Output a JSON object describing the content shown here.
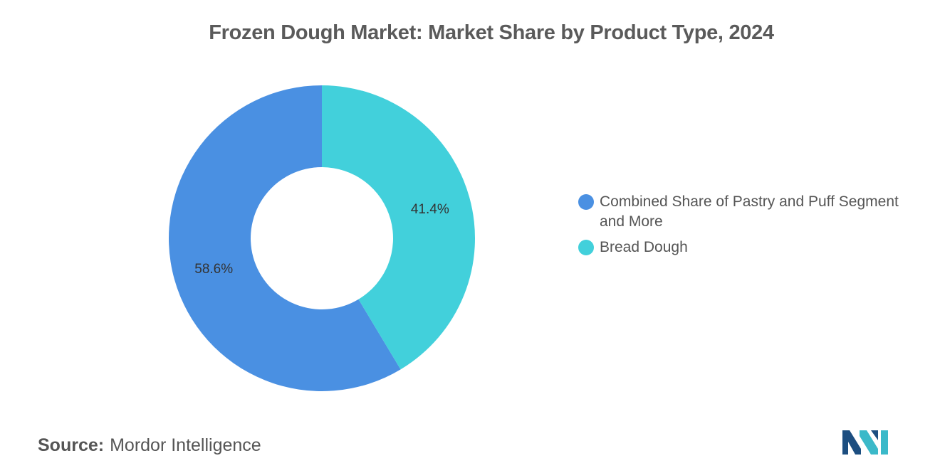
{
  "chart_data": {
    "type": "pie",
    "donut": true,
    "title": "Frozen Dough Market: Market Share by Product Type, 2024",
    "categories": [
      "Combined Share of Pastry and Puff Segment and More",
      "Bread Dough"
    ],
    "values": [
      58.6,
      41.4
    ],
    "value_labels": [
      "58.6%",
      "41.4%"
    ],
    "colors": [
      "#4a90e2",
      "#42d0db"
    ],
    "legend_placement": "right",
    "start_angle_deg": 0,
    "direction": "counterclockwise"
  },
  "source": {
    "label": "Source:",
    "value": "Mordor Intelligence"
  },
  "logo": {
    "icon": "mordor-intelligence-logo-icon",
    "colors": [
      "#1c4e80",
      "#3bb9c9"
    ]
  }
}
